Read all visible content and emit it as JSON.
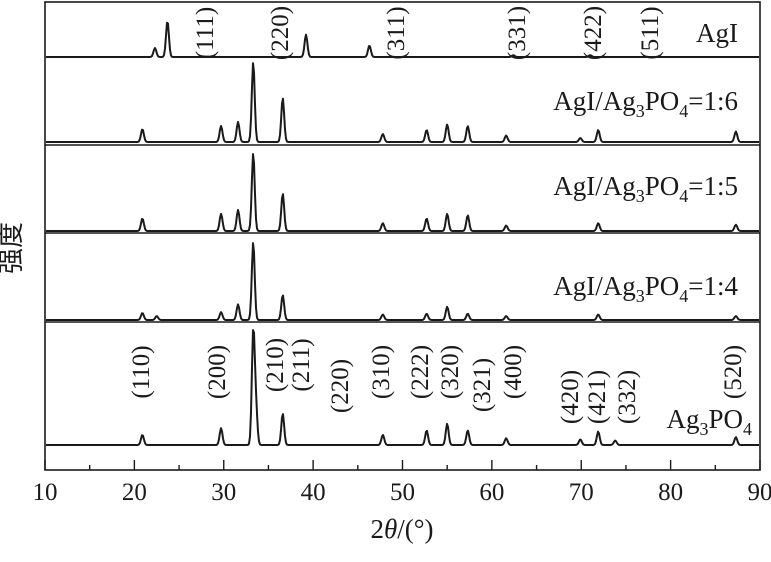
{
  "chart_data": {
    "type": "line",
    "xlabel": "2θ/(°)",
    "ylabel": "强度",
    "xlim": [
      10,
      90
    ],
    "x_ticks": [
      10,
      20,
      30,
      40,
      50,
      60,
      70,
      80,
      90
    ],
    "series": [
      {
        "name": "AgI",
        "peaks": [
          {
            "x": 22.3,
            "h": 0.25
          },
          {
            "x": 23.7,
            "h": 1.0
          },
          {
            "x": 39.2,
            "h": 0.62
          },
          {
            "x": 46.3,
            "h": 0.32
          },
          {
            "x": 62.4,
            "h": 0.05
          },
          {
            "x": 71.0,
            "h": 0.05
          }
        ],
        "hkl_labels": [
          "(111)",
          "(220)",
          "(311)",
          "(331)",
          "(422)",
          "(511)"
        ]
      },
      {
        "name": "AgI/Ag3PO4=1:6",
        "name_main": "AgI/Ag",
        "name_sub1": "3",
        "name_mid": "PO",
        "name_sub2": "4",
        "name_end": "=1:6",
        "peaks": [
          {
            "x": 20.9,
            "h": 0.16
          },
          {
            "x": 29.7,
            "h": 0.2
          },
          {
            "x": 31.6,
            "h": 0.25
          },
          {
            "x": 33.3,
            "h": 1.0
          },
          {
            "x": 36.6,
            "h": 0.55
          },
          {
            "x": 47.8,
            "h": 0.1
          },
          {
            "x": 52.7,
            "h": 0.15
          },
          {
            "x": 55.0,
            "h": 0.22
          },
          {
            "x": 57.3,
            "h": 0.2
          },
          {
            "x": 61.6,
            "h": 0.08
          },
          {
            "x": 69.9,
            "h": 0.05
          },
          {
            "x": 71.9,
            "h": 0.15
          },
          {
            "x": 87.3,
            "h": 0.13
          }
        ]
      },
      {
        "name": "AgI/Ag3PO4=1:5",
        "name_main": "AgI/Ag",
        "name_sub1": "3",
        "name_mid": "PO",
        "name_sub2": "4",
        "name_end": "=1:5",
        "peaks": [
          {
            "x": 20.9,
            "h": 0.16
          },
          {
            "x": 29.7,
            "h": 0.22
          },
          {
            "x": 31.6,
            "h": 0.27
          },
          {
            "x": 33.3,
            "h": 1.0
          },
          {
            "x": 36.6,
            "h": 0.48
          },
          {
            "x": 47.8,
            "h": 0.1
          },
          {
            "x": 52.7,
            "h": 0.16
          },
          {
            "x": 55.0,
            "h": 0.22
          },
          {
            "x": 57.3,
            "h": 0.2
          },
          {
            "x": 61.6,
            "h": 0.07
          },
          {
            "x": 71.9,
            "h": 0.1
          },
          {
            "x": 87.3,
            "h": 0.08
          }
        ]
      },
      {
        "name": "AgI/Ag3PO4=1:4",
        "name_main": "AgI/Ag",
        "name_sub1": "3",
        "name_mid": "PO",
        "name_sub2": "4",
        "name_end": "=1:4",
        "peaks": [
          {
            "x": 20.9,
            "h": 0.09
          },
          {
            "x": 22.5,
            "h": 0.05
          },
          {
            "x": 29.7,
            "h": 0.1
          },
          {
            "x": 31.6,
            "h": 0.2
          },
          {
            "x": 33.3,
            "h": 1.0
          },
          {
            "x": 36.6,
            "h": 0.32
          },
          {
            "x": 47.8,
            "h": 0.07
          },
          {
            "x": 52.7,
            "h": 0.08
          },
          {
            "x": 55.0,
            "h": 0.17
          },
          {
            "x": 57.3,
            "h": 0.08
          },
          {
            "x": 61.6,
            "h": 0.05
          },
          {
            "x": 71.9,
            "h": 0.07
          },
          {
            "x": 87.3,
            "h": 0.05
          }
        ]
      },
      {
        "name": "Ag3PO4",
        "name_main": "Ag",
        "name_sub1": "3",
        "name_mid": "PO",
        "name_sub2": "4",
        "name_end": "",
        "peaks": [
          {
            "x": 20.9,
            "h": 0.09
          },
          {
            "x": 29.7,
            "h": 0.15
          },
          {
            "x": 33.3,
            "h": 1.0
          },
          {
            "x": 33.6,
            "h": 0.33
          },
          {
            "x": 36.6,
            "h": 0.28
          },
          {
            "x": 47.8,
            "h": 0.09
          },
          {
            "x": 52.7,
            "h": 0.13
          },
          {
            "x": 55.0,
            "h": 0.19
          },
          {
            "x": 57.3,
            "h": 0.13
          },
          {
            "x": 61.6,
            "h": 0.06
          },
          {
            "x": 69.9,
            "h": 0.05
          },
          {
            "x": 71.9,
            "h": 0.12
          },
          {
            "x": 73.8,
            "h": 0.04
          },
          {
            "x": 87.3,
            "h": 0.07
          }
        ],
        "hkl_labels": [
          "(110)",
          "(200)",
          "(210)",
          "(211)",
          "(220)",
          "(310)",
          "(222)",
          "(320)",
          "(321)",
          "(400)",
          "(420)",
          "(421)",
          "(332)",
          "(520)"
        ]
      }
    ]
  }
}
